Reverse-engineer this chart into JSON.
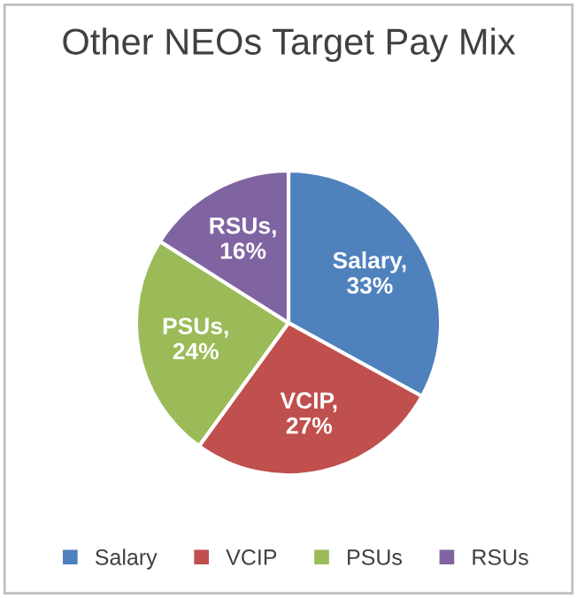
{
  "chart_data": {
    "type": "pie",
    "title": "Other NEOs Target Pay Mix",
    "categories": [
      "Salary",
      "VCIP",
      "PSUs",
      "RSUs"
    ],
    "values": [
      33,
      27,
      24,
      16
    ],
    "colors": [
      "#4f81bd",
      "#c0504d",
      "#9bbb59",
      "#8064a2"
    ],
    "value_labels": [
      "Salary,\n33%",
      "VCIP,\n27%",
      "PSUs,\n24%",
      "RSUs,\n16%"
    ],
    "legend": "bottom"
  }
}
